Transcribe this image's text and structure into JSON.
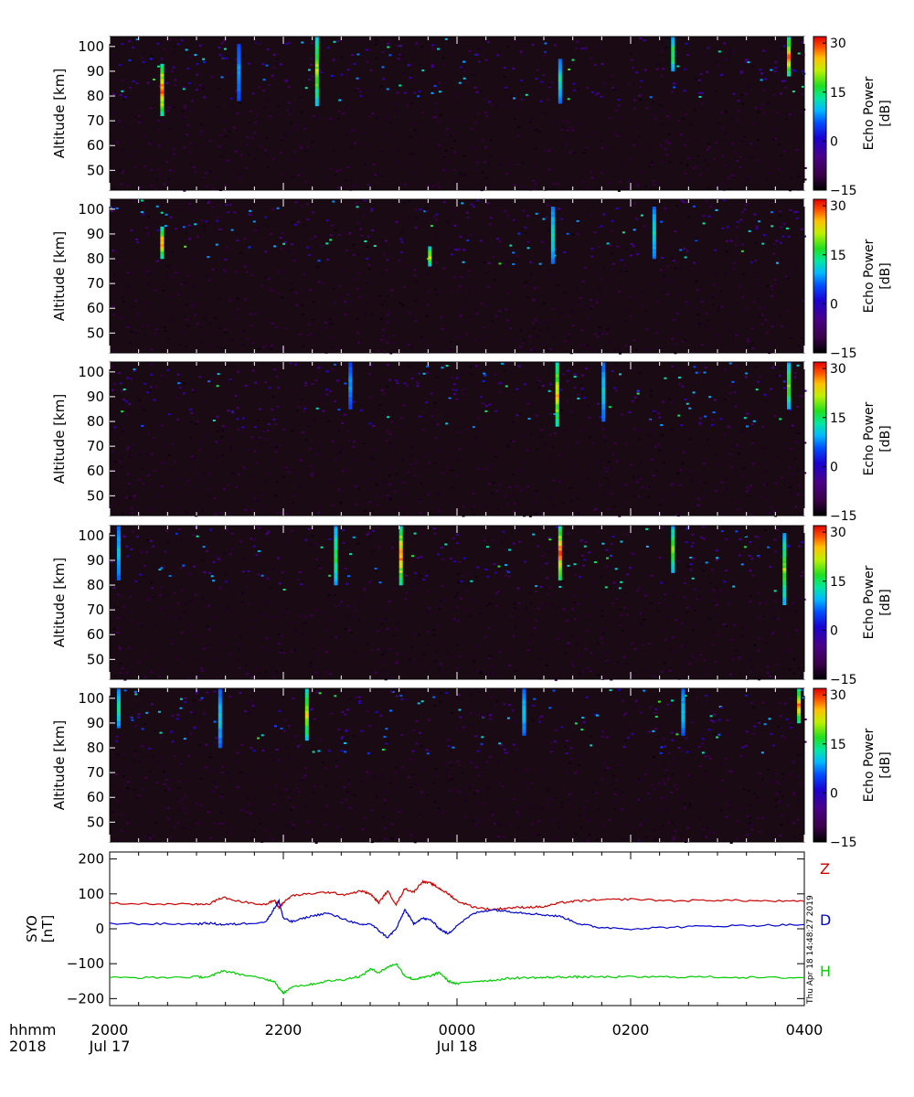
{
  "chart_data": [
    {
      "type": "heatmap",
      "panel": 1,
      "ylabel": "Altitude [km]",
      "ylim": [
        42,
        104
      ],
      "yticks": [
        "50",
        "60",
        "70",
        "80",
        "90",
        "100"
      ],
      "colorbar": {
        "label": [
          "Echo Power",
          "[dB]"
        ],
        "range": [
          -15,
          32
        ],
        "ticks": [
          "30",
          "15",
          "0",
          "-15"
        ]
      },
      "background_color": "#1a0a14",
      "echo_features": [
        {
          "time": "20:35",
          "alt_range": [
            72,
            92
          ],
          "peak_db": 30
        },
        {
          "time": "21:28",
          "alt_range": [
            78,
            100
          ],
          "peak_db": 5
        },
        {
          "time": "22:22",
          "alt_range": [
            76,
            103
          ],
          "peak_db": 20
        },
        {
          "time": "01:10",
          "alt_range": [
            77,
            94
          ],
          "peak_db": 10
        },
        {
          "time": "02:28",
          "alt_range": [
            90,
            103
          ],
          "peak_db": 15
        },
        {
          "time": "03:48",
          "alt_range": [
            88,
            103
          ],
          "peak_db": 28
        }
      ]
    },
    {
      "type": "heatmap",
      "panel": 2,
      "ylabel": "Altitude [km]",
      "ylim": [
        42,
        104
      ],
      "yticks": [
        "50",
        "60",
        "70",
        "80",
        "90",
        "100"
      ],
      "colorbar": {
        "label": [
          "Echo Power",
          "[dB]"
        ],
        "range": [
          -15,
          32
        ],
        "ticks": [
          "30",
          "15",
          "0",
          "-15"
        ]
      },
      "background_color": "#1a0a14",
      "echo_features": [
        {
          "time": "20:35",
          "alt_range": [
            80,
            92
          ],
          "peak_db": 28
        },
        {
          "time": "23:40",
          "alt_range": [
            77,
            84
          ],
          "peak_db": 22
        },
        {
          "time": "01:05",
          "alt_range": [
            78,
            100
          ],
          "peak_db": 10
        },
        {
          "time": "02:15",
          "alt_range": [
            80,
            100
          ],
          "peak_db": 10
        }
      ]
    },
    {
      "type": "heatmap",
      "panel": 3,
      "ylabel": "Altitude [km]",
      "ylim": [
        42,
        104
      ],
      "yticks": [
        "50",
        "60",
        "70",
        "80",
        "90",
        "100"
      ],
      "colorbar": {
        "label": [
          "Echo Power",
          "[dB]"
        ],
        "range": [
          -15,
          32
        ],
        "ticks": [
          "30",
          "15",
          "0",
          "-15"
        ]
      },
      "background_color": "#1a0a14",
      "echo_features": [
        {
          "time": "22:45",
          "alt_range": [
            85,
            103
          ],
          "peak_db": 5
        },
        {
          "time": "01:08",
          "alt_range": [
            78,
            103
          ],
          "peak_db": 25
        },
        {
          "time": "01:40",
          "alt_range": [
            80,
            103
          ],
          "peak_db": 8
        },
        {
          "time": "03:48",
          "alt_range": [
            85,
            103
          ],
          "peak_db": 18
        }
      ]
    },
    {
      "type": "heatmap",
      "panel": 4,
      "ylabel": "Altitude [km]",
      "ylim": [
        42,
        104
      ],
      "yticks": [
        "50",
        "60",
        "70",
        "80",
        "90",
        "100"
      ],
      "colorbar": {
        "label": [
          "Echo Power",
          "[dB]"
        ],
        "range": [
          -15,
          32
        ],
        "ticks": [
          "30",
          "15",
          "0",
          "-15"
        ]
      },
      "background_color": "#1a0a14",
      "echo_features": [
        {
          "time": "20:05",
          "alt_range": [
            82,
            103
          ],
          "peak_db": 8
        },
        {
          "time": "22:35",
          "alt_range": [
            80,
            103
          ],
          "peak_db": 15
        },
        {
          "time": "23:20",
          "alt_range": [
            80,
            103
          ],
          "peak_db": 28
        },
        {
          "time": "01:10",
          "alt_range": [
            82,
            103
          ],
          "peak_db": 30
        },
        {
          "time": "02:28",
          "alt_range": [
            85,
            103
          ],
          "peak_db": 18
        },
        {
          "time": "03:45",
          "alt_range": [
            72,
            100
          ],
          "peak_db": 18
        }
      ]
    },
    {
      "type": "heatmap",
      "panel": 5,
      "ylabel": "Altitude [km]",
      "ylim": [
        42,
        104
      ],
      "yticks": [
        "50",
        "60",
        "70",
        "80",
        "90",
        "100"
      ],
      "colorbar": {
        "label": [
          "Echo Power",
          "[dB]"
        ],
        "range": [
          -15,
          32
        ],
        "ticks": [
          "30",
          "15",
          "0",
          "-15"
        ]
      },
      "background_color": "#1a0a14",
      "echo_features": [
        {
          "time": "20:05",
          "alt_range": [
            88,
            103
          ],
          "peak_db": 12
        },
        {
          "time": "21:15",
          "alt_range": [
            80,
            103
          ],
          "peak_db": 8
        },
        {
          "time": "22:15",
          "alt_range": [
            83,
            103
          ],
          "peak_db": 22
        },
        {
          "time": "00:45",
          "alt_range": [
            85,
            103
          ],
          "peak_db": 8
        },
        {
          "time": "02:35",
          "alt_range": [
            85,
            103
          ],
          "peak_db": 8
        },
        {
          "time": "03:55",
          "alt_range": [
            90,
            103
          ],
          "peak_db": 28
        }
      ]
    },
    {
      "type": "line",
      "panel": 6,
      "ylabel": "SYO [nT]",
      "ylim": [
        -220,
        220
      ],
      "yticks": [
        "200",
        "100",
        "0",
        "-100",
        "-200"
      ],
      "x_hours_from_2000UT": [
        0,
        0.5,
        1.0,
        1.15,
        1.3,
        1.5,
        1.8,
        1.9,
        1.95,
        2.0,
        2.1,
        2.3,
        2.5,
        2.7,
        2.9,
        3.0,
        3.1,
        3.2,
        3.3,
        3.4,
        3.5,
        3.6,
        3.7,
        3.8,
        3.9,
        4.0,
        4.2,
        4.4,
        4.6,
        4.8,
        5.0,
        5.2,
        5.4,
        5.6,
        6.0,
        6.5,
        7.0,
        7.5,
        8.0
      ],
      "series": [
        {
          "name": "Z",
          "color": "#cc0000",
          "values": [
            73,
            71,
            70,
            72,
            90,
            78,
            70,
            82,
            60,
            75,
            95,
            100,
            105,
            98,
            108,
            100,
            75,
            108,
            70,
            115,
            105,
            135,
            130,
            115,
            100,
            80,
            62,
            55,
            60,
            62,
            63,
            75,
            80,
            82,
            85,
            80,
            82,
            80,
            78
          ]
        },
        {
          "name": "D",
          "color": "#0000cc",
          "values": [
            15,
            14,
            14,
            16,
            12,
            14,
            20,
            60,
            80,
            30,
            20,
            35,
            45,
            28,
            10,
            15,
            -5,
            -25,
            0,
            55,
            15,
            30,
            25,
            0,
            -15,
            10,
            45,
            55,
            50,
            45,
            40,
            35,
            15,
            5,
            0,
            5,
            8,
            10,
            12
          ]
        },
        {
          "name": "H",
          "color": "#00cc00",
          "values": [
            -140,
            -140,
            -138,
            -138,
            -120,
            -130,
            -145,
            -150,
            -170,
            -185,
            -165,
            -160,
            -150,
            -145,
            -135,
            -115,
            -125,
            -110,
            -100,
            -135,
            -145,
            -140,
            -135,
            -125,
            -150,
            -158,
            -150,
            -148,
            -142,
            -140,
            -140,
            -138,
            -138,
            -138,
            -138,
            -138,
            -138,
            -140,
            -140
          ]
        }
      ],
      "legend": [
        "Z",
        "D",
        "H"
      ],
      "legend_placement": "right",
      "timestamp": "Thu Apr 18 14:48:27 2019"
    }
  ],
  "xaxis": {
    "row_label_1": "hhmm",
    "row_label_2": "2018",
    "ticks": [
      {
        "hhmm": "2000",
        "date": "Jul 17",
        "hours": 0
      },
      {
        "hhmm": "2200",
        "date": "",
        "hours": 2
      },
      {
        "hhmm": "0000",
        "date": "Jul 18",
        "hours": 4
      },
      {
        "hhmm": "0200",
        "date": "",
        "hours": 6
      },
      {
        "hhmm": "0400",
        "date": "",
        "hours": 8
      }
    ],
    "range_hours": [
      0,
      8
    ]
  }
}
